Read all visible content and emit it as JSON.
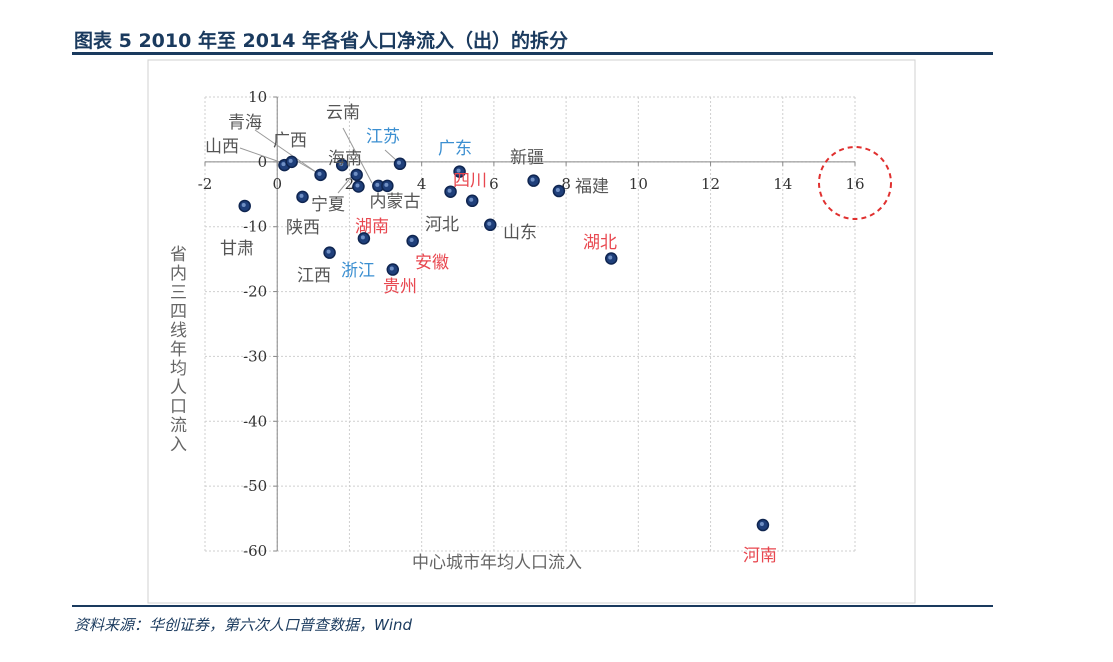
{
  "title": "图表  5   2010 年至 2014 年各省人口净流入（出）的拆分",
  "source": "资料来源：华创证券，第六次人口普查数据，Wind",
  "chart_data": {
    "type": "scatter",
    "title": "",
    "xlabel": "中心城市年均人口流入",
    "ylabel": "省内三四线年均人口流入",
    "xlim": [
      -2,
      16
    ],
    "ylim": [
      -60,
      10
    ],
    "xticks": [
      -2,
      0,
      2,
      4,
      6,
      8,
      10,
      12,
      14,
      16
    ],
    "yticks": [
      10,
      0,
      -10,
      -20,
      -30,
      -40,
      -50,
      -60
    ],
    "grid": true,
    "marker_color": "#1f3f7a",
    "label_colors": {
      "red": "#e8474f",
      "blue": "#3b8fd1",
      "gray": "#555555"
    },
    "highlight": {
      "shape": "dashed-circle",
      "color": "#e0302f",
      "at_x": 16
    },
    "points": [
      {
        "name": "甘肃",
        "x": -0.9,
        "y": -6.8,
        "color": "gray"
      },
      {
        "name": "山西",
        "x": 0.2,
        "y": -0.5,
        "color": "gray"
      },
      {
        "name": "广西",
        "x": 0.4,
        "y": 0,
        "color": "gray"
      },
      {
        "name": "青海",
        "x": 1.2,
        "y": -2,
        "color": "gray"
      },
      {
        "name": "陕西",
        "x": 0.7,
        "y": -5.4,
        "color": "gray"
      },
      {
        "name": "海南",
        "x": 1.8,
        "y": -0.5,
        "color": "gray"
      },
      {
        "name": "宁夏",
        "x": 2.2,
        "y": -2,
        "color": "gray"
      },
      {
        "name": "湖南",
        "x": 2.25,
        "y": -3.8,
        "color": "red"
      },
      {
        "name": "云南",
        "x": 2.8,
        "y": -3.7,
        "color": "gray"
      },
      {
        "name": "内蒙古",
        "x": 3.05,
        "y": -3.7,
        "color": "gray"
      },
      {
        "name": "江苏",
        "x": 3.4,
        "y": -0.3,
        "color": "blue"
      },
      {
        "name": "江西",
        "x": 1.45,
        "y": -14,
        "color": "gray"
      },
      {
        "name": "浙江",
        "x": 2.4,
        "y": -11.8,
        "color": "blue"
      },
      {
        "name": "贵州",
        "x": 3.2,
        "y": -16.6,
        "color": "red"
      },
      {
        "name": "安徽",
        "x": 3.75,
        "y": -12.2,
        "color": "red"
      },
      {
        "name": "河北",
        "x": 4.8,
        "y": -4.6,
        "color": "gray"
      },
      {
        "name": "广东",
        "x": 5.05,
        "y": -1.5,
        "color": "blue"
      },
      {
        "name": "四川",
        "x": 5.4,
        "y": -6,
        "color": "red"
      },
      {
        "name": "山东",
        "x": 5.9,
        "y": -9.7,
        "color": "gray"
      },
      {
        "name": "新疆",
        "x": 7.1,
        "y": -2.9,
        "color": "gray"
      },
      {
        "name": "福建",
        "x": 7.8,
        "y": -4.5,
        "color": "gray"
      },
      {
        "name": "湖北",
        "x": 9.25,
        "y": -14.9,
        "color": "red"
      },
      {
        "name": "河南",
        "x": 13.45,
        "y": -56,
        "color": "red"
      }
    ]
  }
}
